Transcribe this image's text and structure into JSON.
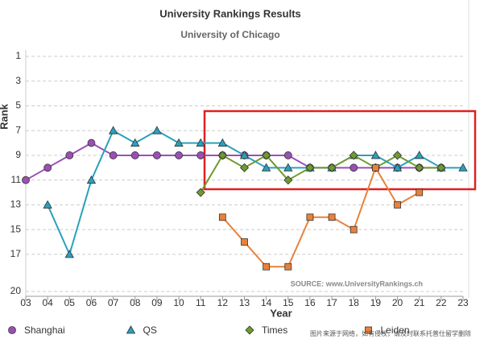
{
  "chart_data": {
    "type": "line",
    "title": "University Rankings Results",
    "subtitle": "University of Chicago",
    "y_label": "Rank",
    "x_label": "Year",
    "source": "SOURCE: www.UniversityRankings.ch",
    "watermark": "图片来源于网络，如有侵权，请及时联系托普仕留学删除",
    "categories": [
      "03",
      "04",
      "05",
      "06",
      "07",
      "08",
      "09",
      "10",
      "11",
      "12",
      "13",
      "14",
      "15",
      "16",
      "17",
      "18",
      "19",
      "20",
      "21",
      "22",
      "23"
    ],
    "series": [
      {
        "name": "Shanghai",
        "color": "#9b4fb5",
        "marker": "circle",
        "values": [
          11,
          10,
          9,
          8,
          9,
          9,
          9,
          9,
          9,
          9,
          9,
          9,
          9,
          10,
          10,
          10,
          10,
          10,
          10,
          10,
          null
        ]
      },
      {
        "name": "QS",
        "color": "#2aa0bd",
        "marker": "triangle",
        "values": [
          null,
          13,
          17,
          11,
          7,
          8,
          7,
          8,
          8,
          8,
          9,
          10,
          10,
          10,
          10,
          9,
          9,
          10,
          9,
          10,
          10
        ]
      },
      {
        "name": "Times",
        "color": "#6f9a2e",
        "marker": "diamond",
        "values": [
          null,
          null,
          null,
          null,
          null,
          null,
          null,
          null,
          12,
          9,
          10,
          9,
          11,
          10,
          10,
          9,
          10,
          9,
          10,
          10,
          null
        ]
      },
      {
        "name": "Leiden",
        "color": "#e8823a",
        "marker": "square",
        "values": [
          null,
          null,
          null,
          null,
          null,
          null,
          null,
          null,
          null,
          14,
          16,
          18,
          18,
          14,
          14,
          15,
          10,
          13,
          12,
          null,
          null
        ]
      }
    ],
    "ylim": [
      20,
      1
    ],
    "yticks": [
      1,
      3,
      5,
      7,
      9,
      11,
      13,
      15,
      17,
      20
    ],
    "grid": true
  }
}
